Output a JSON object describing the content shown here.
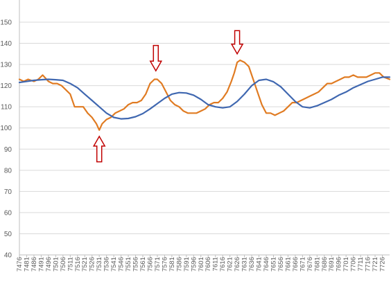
{
  "chart_data": {
    "type": "line",
    "title": "",
    "xlabel": "",
    "ylabel": "",
    "ylim": [
      40,
      155
    ],
    "yticks": [
      40,
      50,
      60,
      70,
      80,
      90,
      100,
      110,
      120,
      130,
      140,
      150
    ],
    "x_tick_labels": [
      "7476",
      "7481",
      "7486",
      "7491",
      "7496",
      "7501",
      "7506",
      "7511",
      "7516",
      "7521",
      "7526",
      "7531",
      "7536",
      "7541",
      "7546",
      "7551",
      "7556",
      "7561",
      "7566",
      "7571",
      "7576",
      "7581",
      "7586",
      "7591",
      "7596",
      "7601",
      "7606",
      "7611",
      "7616",
      "7621",
      "7626",
      "7631",
      "7636",
      "7641",
      "7646",
      "7651",
      "7656",
      "7661",
      "7666",
      "7671",
      "7676",
      "7681",
      "7686",
      "7691",
      "7696",
      "7701",
      "7706",
      "7711",
      "7716",
      "7721",
      "7726"
    ],
    "xlim": [
      7476,
      7731
    ],
    "grid": true,
    "legend": "none",
    "colors": {
      "orange": "#E07B22",
      "blue": "#3F67B0",
      "arrow": "#C00000"
    },
    "series": [
      {
        "color": "orange",
        "x": [
          7476,
          7479,
          7482,
          7486,
          7489,
          7492,
          7496,
          7499,
          7502,
          7505,
          7508,
          7511,
          7514,
          7517,
          7520,
          7523,
          7526,
          7529,
          7531,
          7533,
          7536,
          7539,
          7542,
          7545,
          7548,
          7551,
          7554,
          7557,
          7560,
          7563,
          7566,
          7569,
          7571,
          7574,
          7577,
          7580,
          7583,
          7586,
          7589,
          7592,
          7595,
          7598,
          7601,
          7604,
          7607,
          7610,
          7613,
          7616,
          7619,
          7622,
          7624,
          7626,
          7628,
          7631,
          7634,
          7637,
          7640,
          7643,
          7646,
          7649,
          7652,
          7655,
          7658,
          7661,
          7664,
          7667,
          7670,
          7673,
          7676,
          7679,
          7682,
          7685,
          7688,
          7691,
          7694,
          7697,
          7700,
          7703,
          7706,
          7709,
          7712,
          7715,
          7718,
          7721,
          7724,
          7727,
          7731
        ],
        "y": [
          123,
          122,
          123,
          122,
          123,
          125,
          122,
          121,
          121,
          120,
          118,
          116,
          110,
          110,
          110,
          107,
          105,
          102,
          99,
          102,
          104,
          105,
          107,
          108,
          109,
          111,
          112,
          112,
          113,
          116,
          121,
          123,
          123,
          121,
          117,
          113,
          111,
          110,
          108,
          107,
          107,
          107,
          108,
          109,
          111,
          112,
          112,
          114,
          117,
          122,
          126,
          131,
          132,
          131,
          129,
          123,
          117,
          111,
          107,
          107,
          106,
          107,
          108,
          110,
          112,
          112,
          113,
          114,
          115,
          116,
          117,
          119,
          121,
          121,
          122,
          123,
          124,
          124,
          125,
          124,
          124,
          124,
          125,
          126,
          126,
          124,
          123
        ]
      },
      {
        "color": "blue",
        "x": [
          7476,
          7481,
          7486,
          7491,
          7496,
          7501,
          7506,
          7511,
          7516,
          7521,
          7526,
          7531,
          7536,
          7541,
          7546,
          7551,
          7556,
          7561,
          7566,
          7571,
          7576,
          7581,
          7586,
          7591,
          7596,
          7601,
          7606,
          7611,
          7616,
          7621,
          7626,
          7631,
          7636,
          7641,
          7646,
          7651,
          7656,
          7661,
          7666,
          7671,
          7676,
          7681,
          7686,
          7691,
          7696,
          7701,
          7706,
          7711,
          7716,
          7721,
          7726,
          7731
        ],
        "y": [
          121.5,
          122,
          122.5,
          122.8,
          123,
          122.8,
          122.5,
          121,
          119,
          116,
          113,
          110,
          107,
          105,
          104.3,
          104.5,
          105.3,
          106.8,
          109,
          111.5,
          114,
          116,
          116.7,
          116.5,
          115.5,
          113.5,
          111,
          110,
          109.5,
          110,
          112.5,
          116,
          120,
          122.5,
          123,
          121.8,
          119.5,
          116,
          112.5,
          110,
          109.5,
          110.5,
          112,
          113.5,
          115.5,
          117,
          119,
          120.5,
          122,
          123,
          124,
          124
        ]
      }
    ],
    "annotations": [
      {
        "type": "arrow",
        "direction": "up",
        "x": 7531,
        "y_from": 84,
        "y_to": 96
      },
      {
        "type": "arrow",
        "direction": "down",
        "x": 7570,
        "y_from": 139,
        "y_to": 127
      },
      {
        "type": "arrow",
        "direction": "down",
        "x": 7626,
        "y_from": 146,
        "y_to": 135
      }
    ]
  }
}
